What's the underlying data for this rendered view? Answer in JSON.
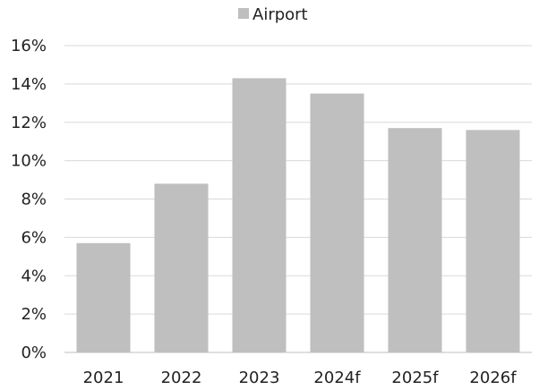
{
  "chart_data": {
    "type": "bar",
    "categories": [
      "2021",
      "2022",
      "2023",
      "2024f",
      "2025f",
      "2026f"
    ],
    "series": [
      {
        "name": "Airport",
        "values": [
          5.7,
          8.8,
          14.3,
          13.5,
          11.7,
          11.6
        ],
        "color": "#bfbfbf"
      }
    ],
    "ylim": [
      0,
      16
    ],
    "y_ticks": [
      "0%",
      "2%",
      "4%",
      "6%",
      "8%",
      "10%",
      "12%",
      "14%",
      "16%"
    ],
    "y_unit": "%",
    "grid": "horizontal",
    "legend_position": "top",
    "gridline_color": "#d9d9d9",
    "axis_color": "#bfbfbf"
  }
}
